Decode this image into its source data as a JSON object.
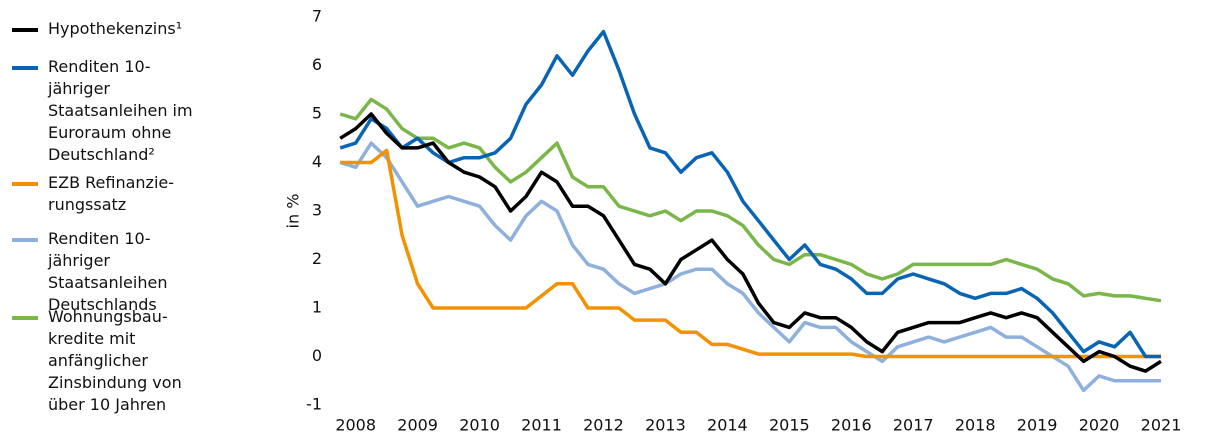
{
  "chart_data": {
    "type": "line",
    "y_label": "in %",
    "x": [
      2007.75,
      2008.0,
      2008.25,
      2008.5,
      2008.75,
      2009.0,
      2009.25,
      2009.5,
      2009.75,
      2010.0,
      2010.25,
      2010.5,
      2010.75,
      2011.0,
      2011.25,
      2011.5,
      2011.75,
      2012.0,
      2012.25,
      2012.5,
      2012.75,
      2013.0,
      2013.25,
      2013.5,
      2013.75,
      2014.0,
      2014.25,
      2014.5,
      2014.75,
      2015.0,
      2015.25,
      2015.5,
      2015.75,
      2016.0,
      2016.25,
      2016.5,
      2016.75,
      2017.0,
      2017.25,
      2017.5,
      2017.75,
      2018.0,
      2018.25,
      2018.5,
      2018.75,
      2019.0,
      2019.25,
      2019.5,
      2019.75,
      2020.0,
      2020.25,
      2020.5,
      2020.75,
      2021.0
    ],
    "series": [
      {
        "name": "Wohnungsbau­kredite mit anfänglicher Zinsbindung von über 10 Jahren",
        "color": "#7ab648",
        "values": [
          5.0,
          4.9,
          5.3,
          5.1,
          4.7,
          4.5,
          4.5,
          4.3,
          4.4,
          4.3,
          3.9,
          3.6,
          3.8,
          4.1,
          4.4,
          3.7,
          3.5,
          3.5,
          3.1,
          3.0,
          2.9,
          3.0,
          2.8,
          3.0,
          3.0,
          2.9,
          2.7,
          2.3,
          2.0,
          1.9,
          2.1,
          2.1,
          2.0,
          1.9,
          1.7,
          1.6,
          1.7,
          1.9,
          1.9,
          1.9,
          1.9,
          1.9,
          1.9,
          2.0,
          1.9,
          1.8,
          1.6,
          1.5,
          1.25,
          1.3,
          1.25,
          1.25,
          1.2,
          1.15
        ]
      },
      {
        "name": "Renditen 10-jähriger Staatsanleihen Deutschlands",
        "color": "#8fb0dc",
        "values": [
          4.0,
          3.9,
          4.4,
          4.1,
          3.6,
          3.1,
          3.2,
          3.3,
          3.2,
          3.1,
          2.7,
          2.4,
          2.9,
          3.2,
          3.0,
          2.3,
          1.9,
          1.8,
          1.5,
          1.3,
          1.4,
          1.5,
          1.7,
          1.8,
          1.8,
          1.5,
          1.3,
          0.9,
          0.6,
          0.3,
          0.7,
          0.6,
          0.6,
          0.3,
          0.1,
          -0.1,
          0.2,
          0.3,
          0.4,
          0.3,
          0.4,
          0.5,
          0.6,
          0.4,
          0.4,
          0.2,
          0.0,
          -0.2,
          -0.7,
          -0.4,
          -0.5,
          -0.5,
          -0.5,
          -0.5
        ]
      },
      {
        "name": "EZB Refinanzie­rungssatz",
        "color": "#f39200",
        "values": [
          4.0,
          4.0,
          4.0,
          4.25,
          2.5,
          1.5,
          1.0,
          1.0,
          1.0,
          1.0,
          1.0,
          1.0,
          1.0,
          1.25,
          1.5,
          1.5,
          1.0,
          1.0,
          1.0,
          0.75,
          0.75,
          0.75,
          0.5,
          0.5,
          0.25,
          0.25,
          0.15,
          0.05,
          0.05,
          0.05,
          0.05,
          0.05,
          0.05,
          0.05,
          0,
          0,
          0,
          0,
          0,
          0,
          0,
          0,
          0,
          0,
          0,
          0,
          0,
          0,
          0,
          0,
          0,
          0,
          0,
          0
        ]
      },
      {
        "name": "Renditen 10-jähriger Staatsanleihen im Euroraum ohne Deutschland²",
        "color": "#0a64b4",
        "values": [
          4.3,
          4.4,
          4.9,
          4.7,
          4.3,
          4.5,
          4.2,
          4.0,
          4.1,
          4.1,
          4.2,
          4.5,
          5.2,
          5.6,
          6.2,
          5.8,
          6.3,
          6.7,
          5.9,
          5.0,
          4.3,
          4.2,
          3.8,
          4.1,
          4.2,
          3.8,
          3.2,
          2.8,
          2.4,
          2.0,
          2.3,
          1.9,
          1.8,
          1.6,
          1.3,
          1.3,
          1.6,
          1.7,
          1.6,
          1.5,
          1.3,
          1.2,
          1.3,
          1.3,
          1.4,
          1.2,
          0.9,
          0.5,
          0.1,
          0.3,
          0.2,
          0.5,
          0.0,
          0.0
        ]
      },
      {
        "name": "Hypothekenzins¹",
        "color": "#000000",
        "values": [
          4.5,
          4.7,
          5.0,
          4.6,
          4.3,
          4.3,
          4.4,
          4.0,
          3.8,
          3.7,
          3.5,
          3.0,
          3.3,
          3.8,
          3.6,
          3.1,
          3.1,
          2.9,
          2.4,
          1.9,
          1.8,
          1.5,
          2.0,
          2.2,
          2.4,
          2.0,
          1.7,
          1.1,
          0.7,
          0.6,
          0.9,
          0.8,
          0.8,
          0.6,
          0.3,
          0.1,
          0.5,
          0.6,
          0.7,
          0.7,
          0.7,
          0.8,
          0.9,
          0.8,
          0.9,
          0.8,
          0.5,
          0.2,
          -0.1,
          0.1,
          0.0,
          -0.2,
          -0.3,
          -0.1
        ]
      }
    ],
    "legend_order": [
      4,
      3,
      2,
      1,
      0
    ],
    "xlim": [
      2007.65,
      2021.5
    ],
    "xticks": [
      2008,
      2009,
      2010,
      2011,
      2012,
      2013,
      2014,
      2015,
      2016,
      2017,
      2018,
      2019,
      2020,
      2021
    ],
    "ylim": [
      -1,
      7
    ],
    "yticks": [
      -1,
      0,
      1,
      2,
      3,
      4,
      5,
      6,
      7
    ],
    "grid": false
  }
}
